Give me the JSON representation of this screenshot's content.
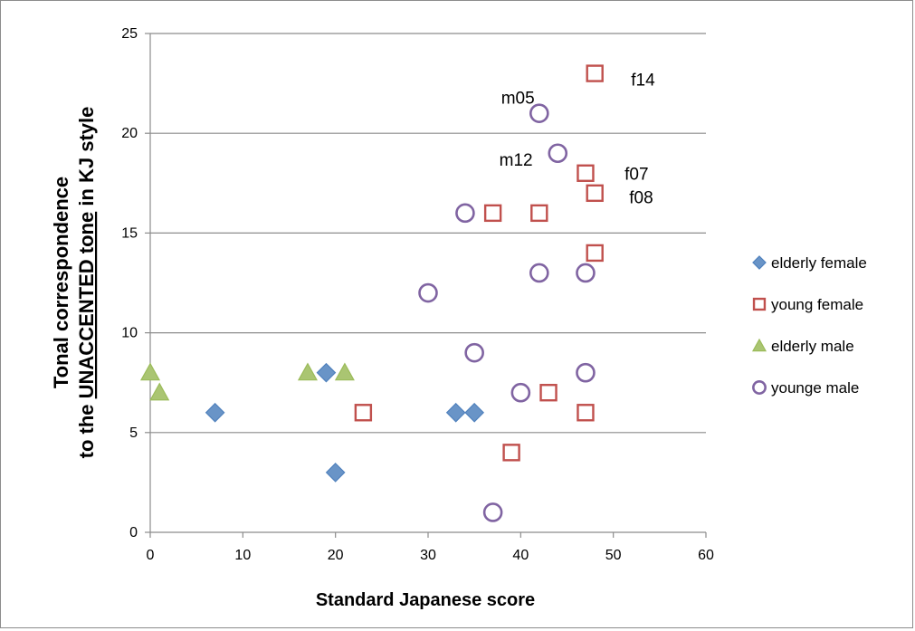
{
  "chart_data": {
    "type": "scatter",
    "title": "",
    "xlabel": "Standard Japanese score",
    "ylabel_line1": "Tonal correspondence",
    "ylabel_line2_prefix": "to the ",
    "ylabel_line2_underlined": "UNACCENTED tone",
    "ylabel_line2_suffix": " in KJ style",
    "xlim": [
      0,
      60
    ],
    "ylim": [
      0,
      25
    ],
    "x_ticks": [
      "0",
      "10",
      "20",
      "30",
      "40",
      "50",
      "60"
    ],
    "y_ticks": [
      "0",
      "5",
      "10",
      "15",
      "20",
      "25"
    ],
    "grid": "horizontal",
    "legend_position": "right",
    "series": [
      {
        "name": "elderly female",
        "marker": "diamond",
        "color": "#4f81bd",
        "points": [
          [
            7,
            6
          ],
          [
            19,
            8
          ],
          [
            20,
            3
          ],
          [
            33,
            6
          ],
          [
            35,
            6
          ]
        ]
      },
      {
        "name": "young female",
        "marker": "square-open",
        "color": "#c0504d",
        "points": [
          [
            23,
            6
          ],
          [
            37,
            16
          ],
          [
            39,
            4
          ],
          [
            42,
            16
          ],
          [
            43,
            7
          ],
          [
            47,
            18
          ],
          [
            47,
            6
          ],
          [
            48,
            23
          ],
          [
            48,
            17
          ],
          [
            48,
            14
          ]
        ]
      },
      {
        "name": "elderly male",
        "marker": "triangle",
        "color": "#9bbb59",
        "points": [
          [
            0,
            8
          ],
          [
            1,
            7
          ],
          [
            17,
            8
          ],
          [
            21,
            8
          ]
        ]
      },
      {
        "name": "younge male",
        "marker": "circle-open",
        "color": "#8064a2",
        "points": [
          [
            30,
            12
          ],
          [
            34,
            16
          ],
          [
            35,
            9
          ],
          [
            37,
            1
          ],
          [
            40,
            7
          ],
          [
            42,
            21
          ],
          [
            42,
            13
          ],
          [
            44,
            19
          ],
          [
            47,
            13
          ],
          [
            47,
            8
          ]
        ]
      }
    ],
    "annotations": [
      {
        "text": "m05",
        "x": 41.5,
        "y": 21.8
      },
      {
        "text": "f14",
        "x": 54.5,
        "y": 22.7
      },
      {
        "text": "m12",
        "x": 41.3,
        "y": 18.7
      },
      {
        "text": "f07",
        "x": 53.8,
        "y": 18.0
      },
      {
        "text": "f08",
        "x": 54.3,
        "y": 16.8
      }
    ]
  }
}
